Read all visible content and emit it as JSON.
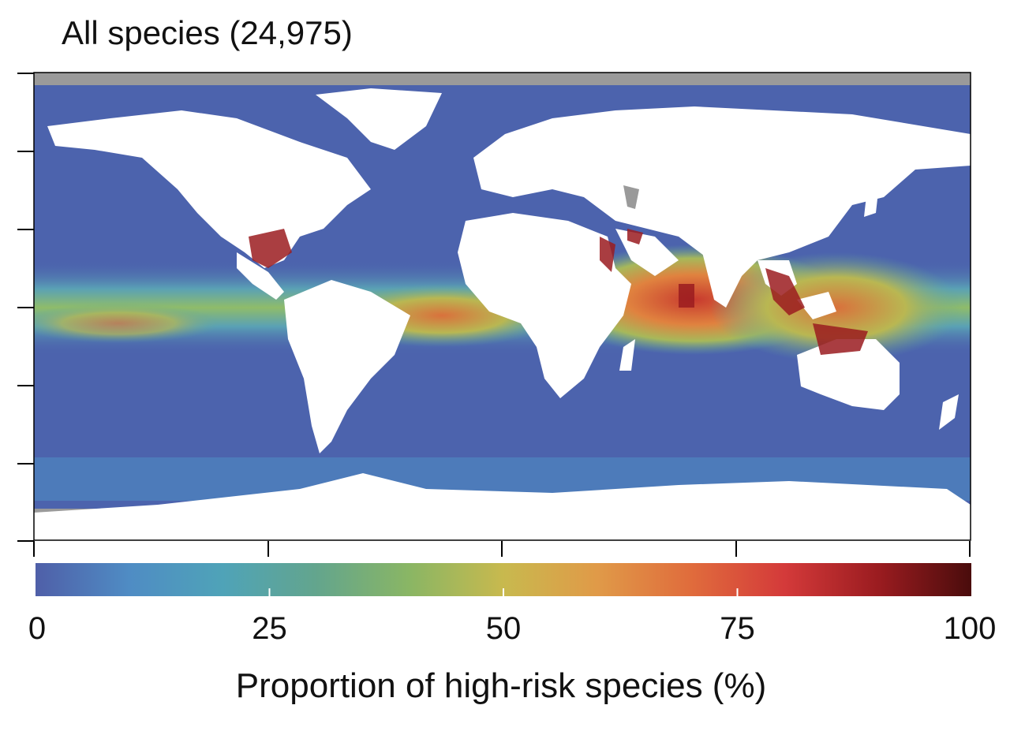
{
  "title": "All species (24,975)",
  "colorbar": {
    "label": "Proportion of high-risk species (%)",
    "range": [
      0,
      100
    ],
    "ticks": [
      {
        "value": 0,
        "label": "0"
      },
      {
        "value": 25,
        "label": "25"
      },
      {
        "value": 50,
        "label": "50"
      },
      {
        "value": 75,
        "label": "75"
      },
      {
        "value": 100,
        "label": "100"
      }
    ],
    "colors": [
      "#4f5fa8",
      "#4f8cc4",
      "#4fa3b8",
      "#63a58d",
      "#8ab664",
      "#c8b94e",
      "#e09a48",
      "#e06c3c",
      "#d43a3a",
      "#9b1c20",
      "#4a0c0c"
    ]
  },
  "map": {
    "ocean_low_color": "#4c63ad",
    "land_color": "#ffffff",
    "no_data_color": "#9a9a9a",
    "hotspot_color": "#9b1c20"
  }
}
